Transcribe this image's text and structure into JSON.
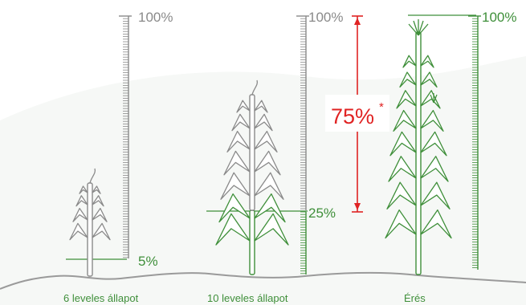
{
  "colors": {
    "gray": "#8a8a8a",
    "green": "#3f8f3a",
    "red": "#e02323",
    "ground": "#9a9a9a"
  },
  "stages": [
    {
      "caption": "6 leveles állapot",
      "top_label": "",
      "mark_label": "5%"
    },
    {
      "caption": "10 leveles állapot",
      "top_label": "100%",
      "mark_label": "25%"
    },
    {
      "caption": "Érés",
      "top_label": "100%",
      "mark_label": ""
    }
  ],
  "first_scale_top": "100%",
  "annotation": {
    "value": "75%",
    "footnote": "*"
  },
  "icons": [
    "ruler-scale",
    "corn-plant",
    "double-arrow",
    "ground-line"
  ]
}
